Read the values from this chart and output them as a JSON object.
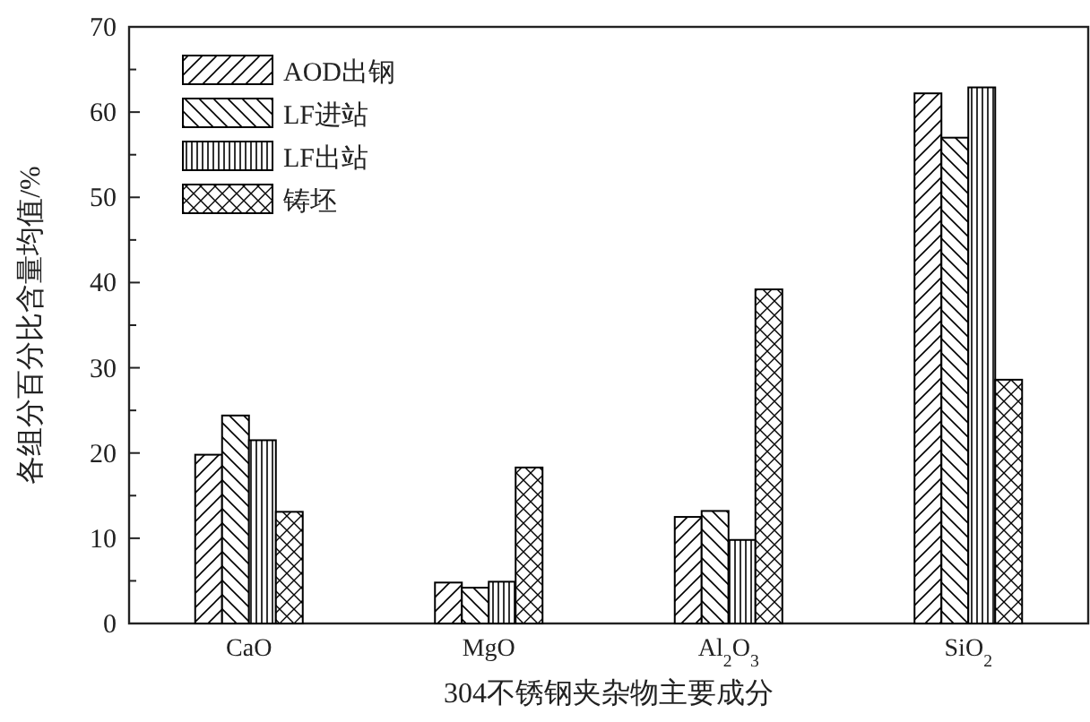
{
  "chart_data": {
    "type": "bar",
    "xlabel": "304不锈钢夹杂物主要成分",
    "ylabel": "各组分百分比含量均值/%",
    "categories": [
      "CaO",
      "MgO",
      "Al$_{2}$O$_{3}$",
      "SiO$_{2}$"
    ],
    "series": [
      {
        "name": "AOD出钢",
        "color": "#000000",
        "values": [
          19.8,
          4.8,
          12.5,
          62.2
        ]
      },
      {
        "name": "LF进站",
        "color": "#000000",
        "values": [
          24.4,
          4.2,
          13.2,
          57.0
        ]
      },
      {
        "name": "LF出站",
        "color": "#000000",
        "values": [
          21.5,
          4.9,
          9.8,
          62.9
        ]
      },
      {
        "name": "铸坯",
        "color": "#000000",
        "values": [
          13.1,
          18.3,
          39.2,
          28.6
        ]
      }
    ],
    "ylim": [
      0,
      70
    ],
    "yticks": [
      0,
      {
        "value": 5,
        "label": null
      },
      10,
      {
        "value": 15,
        "label": null
      },
      20,
      {
        "value": 25,
        "label": null
      },
      30,
      {
        "value": 35,
        "label": null
      },
      40,
      {
        "value": 45,
        "label": null
      },
      50,
      {
        "value": 55,
        "label": null
      },
      60,
      {
        "value": 65,
        "label": null
      },
      70
    ],
    "grid": false,
    "legend": "top left"
  }
}
